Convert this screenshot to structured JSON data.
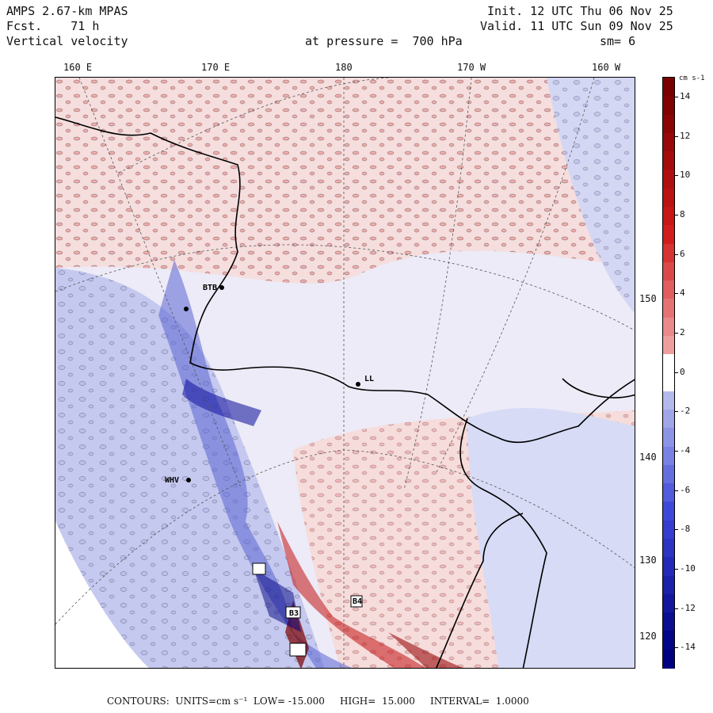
{
  "header": {
    "model": "AMPS 2.67-km MPAS",
    "forecast": "Fcst.    71 h",
    "field": "Vertical velocity",
    "init": "Init. 12 UTC Thu 06 Nov 25",
    "valid": "Valid. 11 UTC Sun 09 Nov 25",
    "level": "at pressure =  700 hPa",
    "smoothing": "sm= 6"
  },
  "lon_labels": [
    "160 E",
    "170 E",
    "180",
    "170 W",
    "160 W"
  ],
  "lat_labels": [
    "150 W",
    "140 W",
    "130 W",
    "120 W"
  ],
  "stations": [
    "BTB",
    "LL",
    "WHV",
    "B4",
    "B3"
  ],
  "colorbar": {
    "units": "cm s-1",
    "labels": [
      "14",
      "12",
      "10",
      "8",
      "6",
      "4",
      "2",
      "0",
      "-2",
      "-4",
      "-6",
      "-8",
      "-10",
      "-12",
      "-14"
    ],
    "colors": {
      "strong_up": "#7a0000",
      "up": "#d01818",
      "weak_up": "#f4b4b4",
      "zero": "#ffffff",
      "weak_down": "#c8ccf0",
      "down": "#3a44d8",
      "strong_down": "#000080"
    }
  },
  "footer": "CONTOURS:  UNITS=cm s⁻¹  LOW= -15.000     HIGH=  15.000     INTERVAL=  1.0000"
}
